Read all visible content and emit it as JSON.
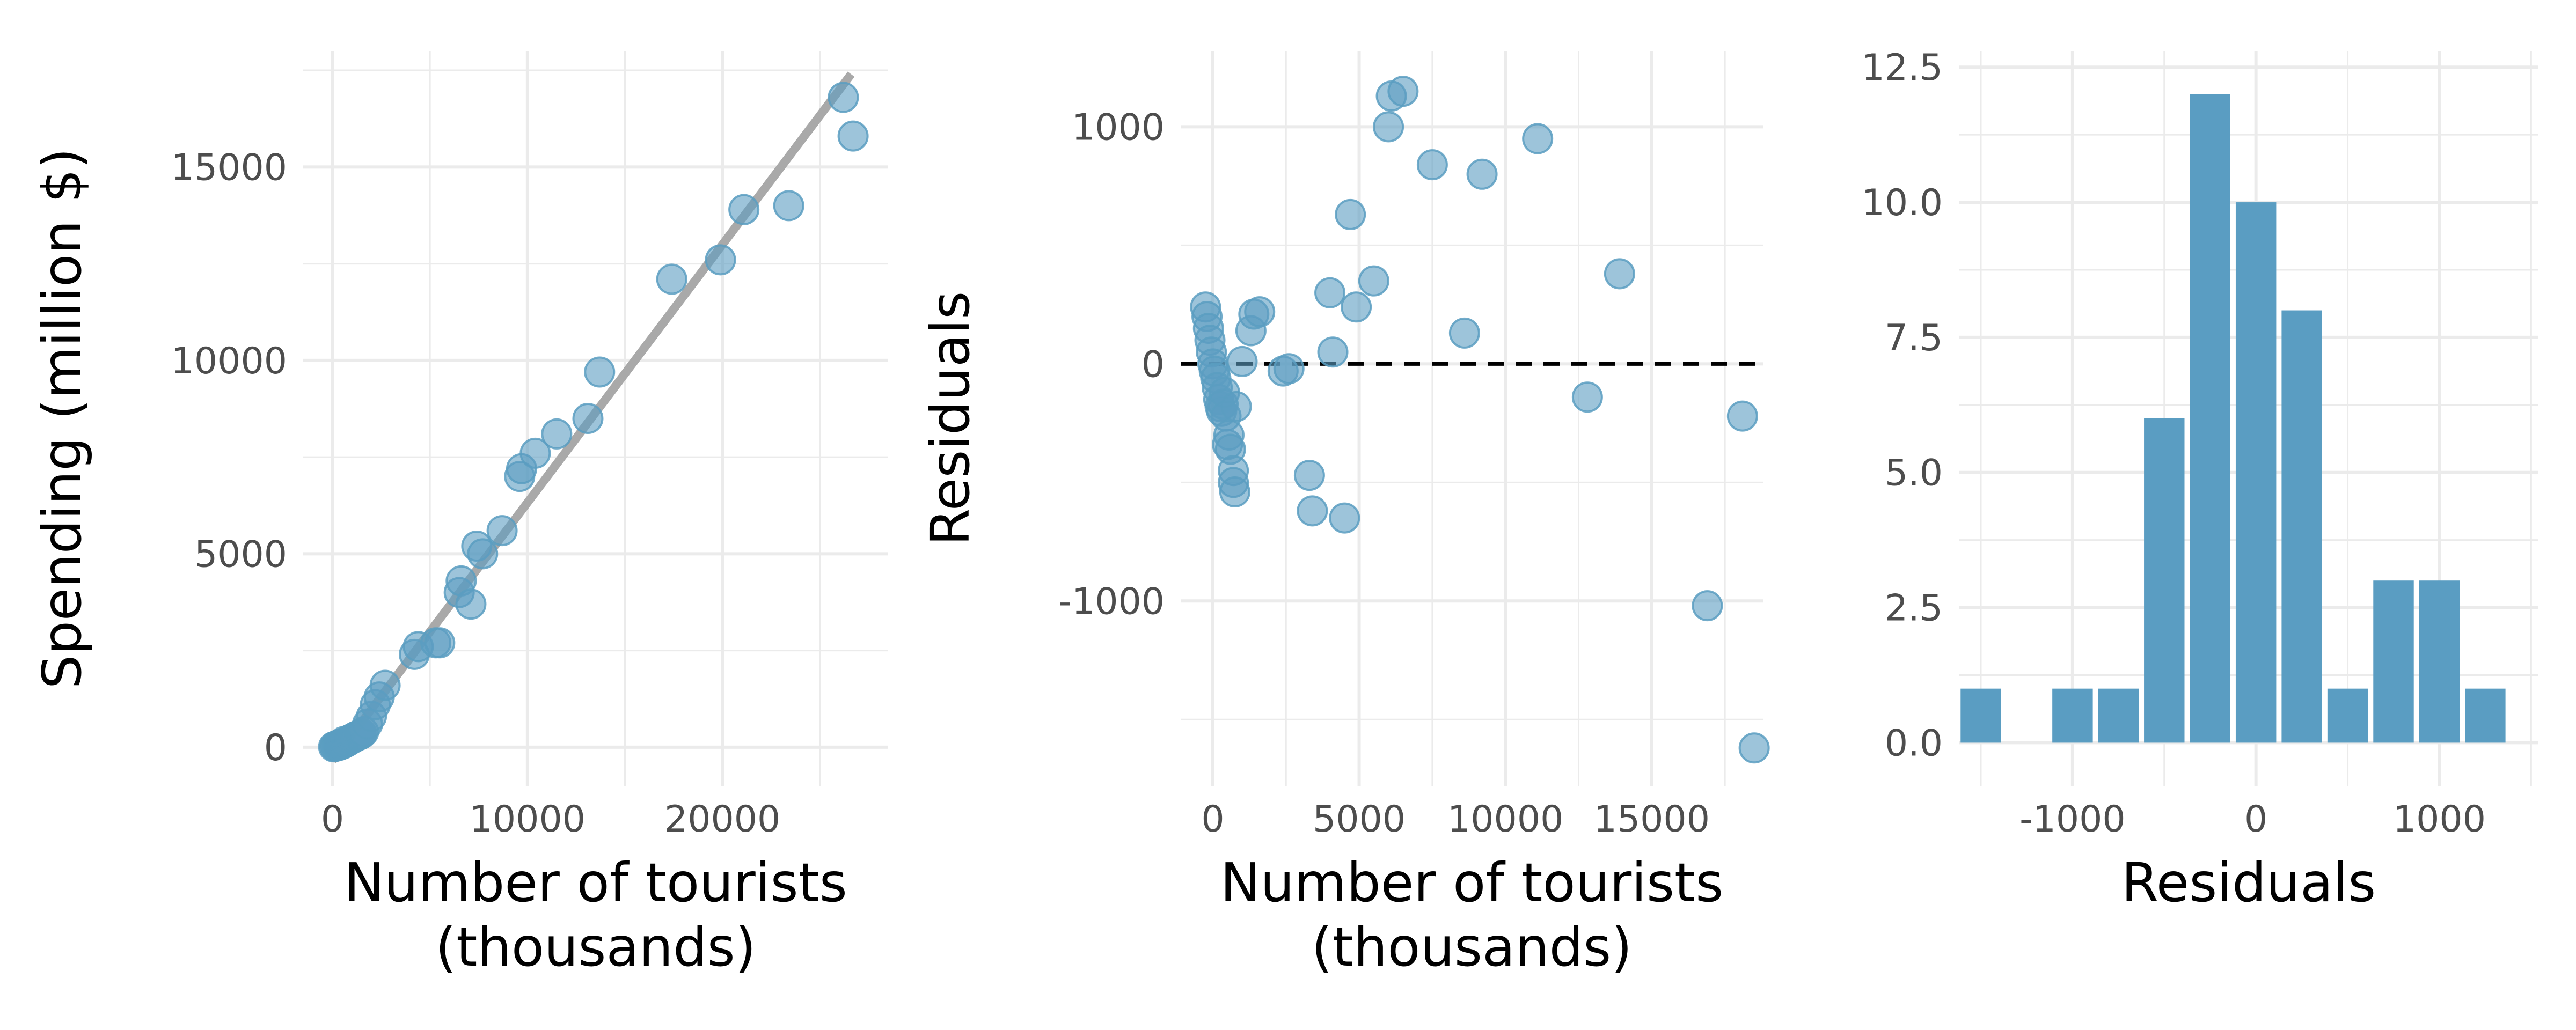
{
  "colors": {
    "point": "#5b9dc1",
    "bar": "#5a9dc2",
    "fit_line": "#a9a9a9",
    "grid": "#ebebeb",
    "zero_line": "#000000"
  },
  "chart_data": [
    {
      "type": "scatter",
      "title": "",
      "xlabel": "Number of tourists",
      "xlabel2": "(thousands)",
      "ylabel": "Spending (million $)",
      "xlim": [
        -1500,
        28500
      ],
      "ylim": [
        -1000,
        18000
      ],
      "xticks": [
        0,
        10000,
        20000
      ],
      "xtick_labels": [
        "0",
        "10000",
        "20000"
      ],
      "yticks": [
        0,
        5000,
        10000,
        15000
      ],
      "ytick_labels": [
        "0",
        "5000",
        "10000",
        "15000"
      ],
      "grid": true,
      "fit_line": {
        "x": [
          0,
          26600
        ],
        "y": [
          -350,
          17400
        ]
      },
      "x": [
        60,
        120,
        180,
        250,
        300,
        350,
        400,
        450,
        500,
        550,
        600,
        700,
        800,
        900,
        1000,
        1100,
        1200,
        1300,
        1400,
        1500,
        1600,
        1800,
        2000,
        2200,
        2400,
        2700,
        4200,
        4400,
        5300,
        5500,
        6500,
        6600,
        7100,
        7400,
        7700,
        8700,
        9600,
        9700,
        10400,
        11500,
        13100,
        13700,
        17400,
        19900,
        21100,
        23400,
        26200,
        26700
      ],
      "y": [
        10,
        20,
        30,
        50,
        40,
        60,
        80,
        70,
        100,
        90,
        150,
        130,
        160,
        200,
        220,
        250,
        280,
        300,
        320,
        350,
        400,
        600,
        800,
        1100,
        1300,
        1600,
        2400,
        2600,
        2700,
        2700,
        4000,
        4300,
        3700,
        5200,
        5000,
        5600,
        7000,
        7200,
        7600,
        8100,
        8500,
        9700,
        12100,
        12600,
        13900,
        14000,
        16800,
        15800
      ]
    },
    {
      "type": "scatter",
      "title": "",
      "xlabel": "Number of tourists",
      "xlabel2": "(thousands)",
      "ylabel": "Residuals",
      "xlim": [
        -1100,
        18800
      ],
      "ylim": [
        -1780,
        1320
      ],
      "xticks": [
        0,
        5000,
        10000,
        15000
      ],
      "xtick_labels": [
        "0",
        "5000",
        "10000",
        "15000"
      ],
      "yticks": [
        -1000,
        0,
        1000
      ],
      "ytick_labels": [
        "-1000",
        "0",
        "1000"
      ],
      "grid": true,
      "reference_line": {
        "y": 0,
        "style": "dashed"
      },
      "x": [
        -250,
        -200,
        -150,
        -100,
        -50,
        0,
        50,
        100,
        150,
        200,
        250,
        300,
        350,
        400,
        450,
        500,
        550,
        600,
        700,
        700,
        750,
        800,
        1000,
        1300,
        1400,
        1600,
        2400,
        2600,
        3300,
        3400,
        4000,
        4100,
        4500,
        4700,
        4900,
        5500,
        6000,
        6100,
        6500,
        7500,
        8600,
        9200,
        11100,
        12800,
        13900,
        16900,
        18100,
        18500
      ],
      "y": [
        240,
        200,
        150,
        100,
        50,
        0,
        -30,
        -60,
        -100,
        -150,
        -180,
        -200,
        -170,
        -120,
        -220,
        -340,
        -300,
        -360,
        -450,
        -500,
        -540,
        -180,
        10,
        140,
        210,
        220,
        -30,
        -20,
        -470,
        -620,
        300,
        50,
        -650,
        630,
        240,
        350,
        1000,
        1130,
        1150,
        840,
        130,
        800,
        950,
        -140,
        380,
        -1020,
        -220,
        -1620
      ]
    },
    {
      "type": "bar",
      "title": "",
      "xlabel": "Residuals",
      "ylabel": "",
      "xlim": [
        -1620,
        1540
      ],
      "ylim": [
        -0.8,
        12.8
      ],
      "xticks": [
        -1000,
        0,
        1000
      ],
      "xtick_labels": [
        "-1000",
        "0",
        "1000"
      ],
      "yticks": [
        0,
        2.5,
        5,
        7.5,
        10,
        12.5
      ],
      "ytick_labels": [
        "0.0",
        "2.5",
        "5.0",
        "7.5",
        "10.0",
        "12.5"
      ],
      "grid": true,
      "bin_width": 250,
      "bin_centers": [
        -1500,
        -1250,
        -1000,
        -750,
        -500,
        -250,
        0,
        250,
        500,
        750,
        1000,
        1250
      ],
      "values": [
        1,
        0,
        1,
        1,
        6,
        12,
        10,
        8,
        1,
        3,
        3,
        1
      ]
    }
  ]
}
